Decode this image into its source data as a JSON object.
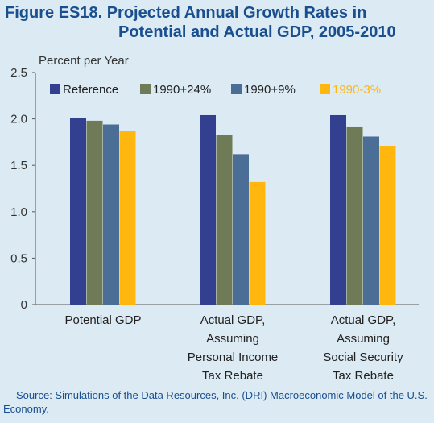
{
  "title_line1": "Figure ES18.  Projected Annual Growth Rates in",
  "title_line2": "Potential and Actual GDP, 2005-2010",
  "source": "Source: Simulations of the Data Resources, Inc. (DRI) Macroeconomic Model of the U.S. Economy.",
  "chart_data": {
    "type": "bar",
    "title": "Figure ES18. Projected Annual Growth Rates in Potential and Actual GDP, 2005-2010",
    "ylabel": "Percent per Year",
    "xlabel": "",
    "ylim": [
      0,
      2.5
    ],
    "yticks": [
      "0",
      "0.5",
      "1.0",
      "1.5",
      "2.0",
      "2.5"
    ],
    "grid": false,
    "legend_position": "top",
    "categories": [
      [
        "Potential GDP"
      ],
      [
        "Actual GDP,",
        "Assuming",
        "Personal Income",
        "Tax Rebate"
      ],
      [
        "Actual GDP,",
        "Assuming",
        "Social Security",
        "Tax Rebate"
      ]
    ],
    "series": [
      {
        "name": "Reference",
        "color": "#333f8f",
        "label_color": "#222222",
        "values": [
          2.01,
          2.04,
          2.04
        ]
      },
      {
        "name": "1990+24%",
        "color": "#6f7a56",
        "label_color": "#222222",
        "values": [
          1.98,
          1.83,
          1.91
        ]
      },
      {
        "name": "1990+9%",
        "color": "#4a6e96",
        "label_color": "#222222",
        "values": [
          1.94,
          1.62,
          1.81
        ]
      },
      {
        "name": "1990-3%",
        "color": "#ffb70f",
        "label_color": "#ffb70f",
        "values": [
          1.87,
          1.32,
          1.71
        ]
      }
    ]
  }
}
